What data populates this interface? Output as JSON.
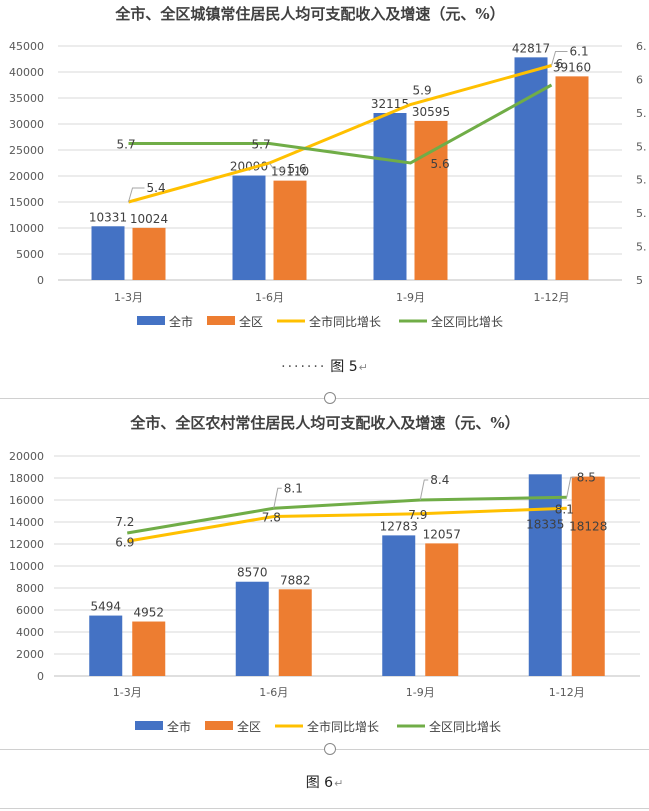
{
  "chart_data": [
    {
      "type": "bar",
      "title": "全市、全区城镇常住居民人均可支配收入及增速（元、%）",
      "categories": [
        "1-3月",
        "1-6月",
        "1-9月",
        "1-12月"
      ],
      "ylim": [
        0,
        45000
      ],
      "yticks": [
        "0",
        "5000",
        "10000",
        "15000",
        "20000",
        "25000",
        "30000",
        "35000",
        "40000",
        "45000"
      ],
      "y2lim": [
        5,
        6.2
      ],
      "y2ticks": [
        "5",
        "5.",
        "5.",
        "5.",
        "5.",
        "5.",
        "6",
        "6."
      ],
      "series": [
        {
          "name": "全市",
          "kind": "bar",
          "color": "#4472C4",
          "values": [
            10331,
            20090,
            32115,
            42817
          ]
        },
        {
          "name": "全区",
          "kind": "bar",
          "color": "#ED7D31",
          "values": [
            10024,
            19110,
            30595,
            39160
          ]
        },
        {
          "name": "全市同比增长",
          "kind": "line",
          "color": "#FFC000",
          "values": [
            5.4,
            5.6,
            5.9,
            6.1
          ]
        },
        {
          "name": "全区同比增长",
          "kind": "line",
          "color": "#70AD47",
          "values": [
            5.7,
            5.7,
            5.6,
            6
          ]
        }
      ],
      "bar_labels": [
        [
          "10331",
          "20090",
          "32115",
          "42817"
        ],
        [
          "10024",
          "19110",
          "30595",
          "39160"
        ]
      ],
      "line_labels": [
        [
          "5.4",
          "5.6",
          "5.9",
          "6.1"
        ],
        [
          "5.7",
          "5.7",
          "5.6",
          "6"
        ]
      ],
      "legend": [
        "全市",
        "全区",
        "全市同比增长",
        "全区同比增长"
      ],
      "legend_position": "bottom"
    },
    {
      "type": "bar",
      "title": "全市、全区农村常住居民人均可支配收入及增速（元、%）",
      "categories": [
        "1-3月",
        "1-6月",
        "1-9月",
        "1-12月"
      ],
      "ylim": [
        0,
        20000
      ],
      "yticks": [
        "0",
        "2000",
        "4000",
        "6000",
        "8000",
        "10000",
        "12000",
        "14000",
        "16000",
        "18000",
        "20000"
      ],
      "y2lim": [
        2,
        10
      ],
      "series": [
        {
          "name": "全市",
          "kind": "bar",
          "color": "#4472C4",
          "values": [
            5494,
            8570,
            12783,
            18335
          ]
        },
        {
          "name": "全区",
          "kind": "bar",
          "color": "#ED7D31",
          "values": [
            4952,
            7882,
            12057,
            18128
          ]
        },
        {
          "name": "全市同比增长",
          "kind": "line",
          "color": "#FFC000",
          "values": [
            6.9,
            7.8,
            7.9,
            8.1
          ]
        },
        {
          "name": "全区同比增长",
          "kind": "line",
          "color": "#70AD47",
          "values": [
            7.2,
            8.1,
            8.4,
            8.5
          ]
        }
      ],
      "bar_labels": [
        [
          "5494",
          "8570",
          "12783",
          "18335"
        ],
        [
          "4952",
          "7882",
          "12057",
          "18128"
        ]
      ],
      "line_labels": [
        [
          "6.9",
          "7.8",
          "7.9",
          "8.1"
        ],
        [
          "7.2",
          "8.1",
          "8.4",
          "8.5"
        ]
      ],
      "legend": [
        "全市",
        "全区",
        "全市同比增长",
        "全区同比增长"
      ],
      "legend_position": "bottom"
    }
  ],
  "captions": {
    "fig5": "图 5",
    "fig6": "图 6"
  }
}
